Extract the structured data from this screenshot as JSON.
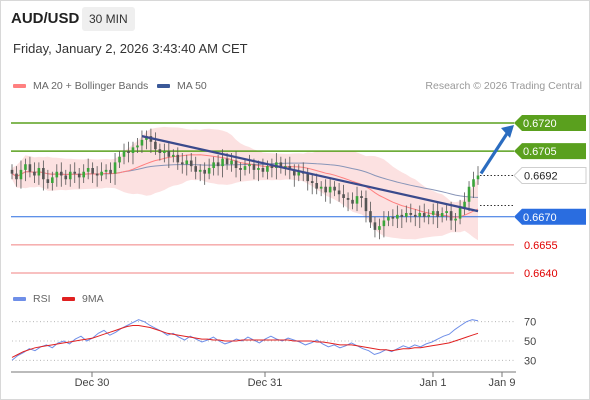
{
  "header": {
    "symbol": "AUD/USD",
    "timeframe": "30 MIN",
    "datetime": "Friday, January 2, 2026 3:43:40 AM CET"
  },
  "legend": {
    "ma20": "MA 20 + Bollinger Bands",
    "ma50": "MA 50",
    "rsi": "RSI",
    "rsi_ma": "9MA",
    "credit": "Research © 2026 Trading Central"
  },
  "colors": {
    "ma20": "#ff8080",
    "ma50": "#3b5998",
    "resistance": "#5aa01e",
    "support": "#2a6de0",
    "target": "#e00000",
    "trendline": "#3a4a8c",
    "arrow": "#2a6cc0",
    "rsi": "#6f8fe8",
    "rsi_ma": "#e02020"
  },
  "chart_data": [
    {
      "type": "candlestick",
      "title": "AUD/USD 30 MIN",
      "ylim": [
        0.6635,
        0.673
      ],
      "x_ticks": [
        "Dec 30",
        "Dec 31",
        "Jan 1",
        "Jan 9"
      ],
      "current_price": "0.6692",
      "levels": [
        {
          "label": "0.6720",
          "value": 0.672,
          "kind": "resistance"
        },
        {
          "label": "0.6705",
          "value": 0.6705,
          "kind": "resistance"
        },
        {
          "label": "0.6670",
          "value": 0.667,
          "kind": "pivot"
        },
        {
          "label": "0.6655",
          "value": 0.6655,
          "kind": "support"
        },
        {
          "label": "0.6640",
          "value": 0.664,
          "kind": "support"
        }
      ],
      "closes": [
        0.6693,
        0.669,
        0.6695,
        0.6698,
        0.6694,
        0.6692,
        0.6696,
        0.669,
        0.6688,
        0.6691,
        0.6694,
        0.6692,
        0.669,
        0.6694,
        0.6693,
        0.6691,
        0.6694,
        0.6696,
        0.6693,
        0.6692,
        0.6694,
        0.6695,
        0.6693,
        0.6699,
        0.6702,
        0.6705,
        0.6704,
        0.6707,
        0.6708,
        0.6711,
        0.6713,
        0.671,
        0.6706,
        0.6704,
        0.6705,
        0.6702,
        0.6703,
        0.6699,
        0.6698,
        0.67,
        0.6697,
        0.6694,
        0.6695,
        0.6693,
        0.6696,
        0.6699,
        0.6697,
        0.6701,
        0.6698,
        0.67,
        0.6696,
        0.6695,
        0.6697,
        0.6698,
        0.6695,
        0.6696,
        0.6694,
        0.6697,
        0.6696,
        0.6699,
        0.6696,
        0.6697,
        0.6695,
        0.6692,
        0.6694,
        0.6693,
        0.6689,
        0.6688,
        0.6685,
        0.6686,
        0.6683,
        0.6686,
        0.6684,
        0.6682,
        0.668,
        0.6679,
        0.6677,
        0.6681,
        0.668,
        0.6673,
        0.6667,
        0.6663,
        0.6665,
        0.6668,
        0.667,
        0.6669,
        0.6671,
        0.667,
        0.6672,
        0.6671,
        0.667,
        0.6672,
        0.667,
        0.6671,
        0.6673,
        0.667,
        0.6672,
        0.6673,
        0.6668,
        0.6669,
        0.6675,
        0.6678,
        0.6686,
        0.669,
        0.6692
      ],
      "trendline": {
        "from": 0.6713,
        "to": 0.6673
      },
      "arrow_target": 0.672
    },
    {
      "type": "line",
      "series_names": [
        "RSI",
        "9MA"
      ],
      "ylim": [
        20,
        80
      ],
      "y_ticks": [
        70,
        50,
        30
      ],
      "rsi_values": [
        30,
        35,
        38,
        42,
        40,
        44,
        46,
        43,
        48,
        50,
        47,
        52,
        55,
        50,
        53,
        58,
        61,
        56,
        59,
        63,
        66,
        69,
        72,
        70,
        66,
        63,
        60,
        56,
        58,
        54,
        51,
        55,
        52,
        49,
        51,
        54,
        50,
        47,
        49,
        52,
        50,
        54,
        51,
        48,
        52,
        55,
        52,
        50,
        53,
        51,
        49,
        46,
        48,
        51,
        47,
        44,
        46,
        43,
        45,
        48,
        45,
        42,
        40,
        36,
        38,
        41,
        39,
        42,
        45,
        43,
        46,
        44,
        47,
        49,
        52,
        55,
        57,
        62,
        66,
        70,
        72,
        71
      ],
      "rsi_ma_values": [
        33,
        36,
        39,
        41,
        43,
        44,
        45,
        46,
        47,
        48,
        49,
        50,
        51,
        52,
        53,
        55,
        57,
        59,
        61,
        63,
        65,
        66,
        66,
        65,
        64,
        62,
        60,
        58,
        57,
        56,
        55,
        54,
        53,
        52,
        52,
        51,
        51,
        50,
        50,
        50,
        51,
        51,
        51,
        51,
        51,
        51,
        51,
        51,
        51,
        50,
        50,
        50,
        50,
        49,
        49,
        48,
        47,
        46,
        46,
        46,
        45,
        44,
        43,
        42,
        41,
        41,
        40,
        41,
        42,
        42,
        43,
        43,
        44,
        45,
        46,
        47,
        48,
        50,
        52,
        54,
        56,
        58
      ]
    }
  ]
}
